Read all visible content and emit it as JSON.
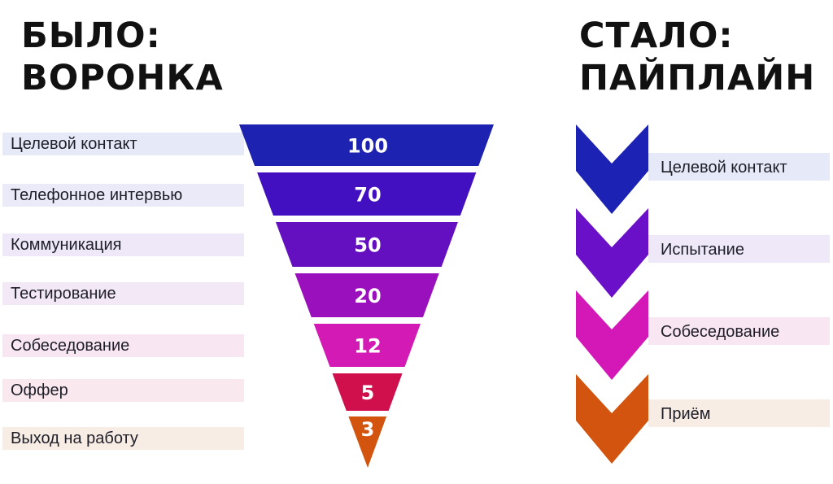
{
  "before": {
    "title": "БЫЛО:\nВОРОНКА",
    "stages": [
      {
        "label": "Целевой контакт",
        "value": "100",
        "color": "#1E22B0",
        "band": "#E6EAF8"
      },
      {
        "label": "Телефонное интервью",
        "value": "70",
        "color": "#4210C0",
        "band": "#EBEAF9"
      },
      {
        "label": "Коммуникация",
        "value": "50",
        "color": "#6410C0",
        "band": "#EEE8F8"
      },
      {
        "label": "Тестирование",
        "value": "20",
        "color": "#9A10BC",
        "band": "#F3E8F6"
      },
      {
        "label": "Собеседование",
        "value": "12",
        "color": "#D41AB4",
        "band": "#F8E6F3"
      },
      {
        "label": "Оффер",
        "value": "5",
        "color": "#D0104C",
        "band": "#F9E8EE"
      },
      {
        "label": "Выход на работу",
        "value": "3",
        "color": "#D2540E",
        "band": "#F8EDE5"
      }
    ]
  },
  "after": {
    "title": "СТАЛО:\nПАЙПЛАЙН",
    "stages": [
      {
        "label": "Целевой контакт",
        "color": "#1C22B4",
        "band": "#E6EAF8"
      },
      {
        "label": "Испытание",
        "color": "#6A10C8",
        "band": "#EEE8F8"
      },
      {
        "label": "Собеседование",
        "color": "#D418B8",
        "band": "#F8E6F3"
      },
      {
        "label": "Приём",
        "color": "#D2540E",
        "band": "#F8EDE5"
      }
    ]
  }
}
